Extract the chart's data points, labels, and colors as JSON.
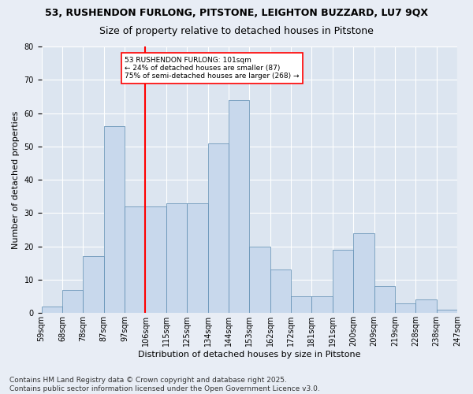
{
  "title1": "53, RUSHENDON FURLONG, PITSTONE, LEIGHTON BUZZARD, LU7 9QX",
  "title2": "Size of property relative to detached houses in Pitstone",
  "xlabel": "Distribution of detached houses by size in Pitstone",
  "ylabel": "Number of detached properties",
  "bar_values": [
    2,
    7,
    17,
    56,
    32,
    32,
    33,
    33,
    51,
    64,
    20,
    13,
    5,
    5,
    19,
    24,
    8,
    3,
    4,
    1
  ],
  "categories": [
    "59sqm",
    "68sqm",
    "78sqm",
    "87sqm",
    "97sqm",
    "106sqm",
    "115sqm",
    "125sqm",
    "134sqm",
    "144sqm",
    "153sqm",
    "162sqm",
    "172sqm",
    "181sqm",
    "191sqm",
    "200sqm",
    "209sqm",
    "219sqm",
    "228sqm",
    "238sqm",
    "247sqm"
  ],
  "bar_color": "#c8d8ec",
  "bar_edge_color": "#5a8ab0",
  "vline_color": "red",
  "vline_x_index": 4.5,
  "annotation_text": "53 RUSHENDON FURLONG: 101sqm\n← 24% of detached houses are smaller (87)\n75% of semi-detached houses are larger (268) →",
  "annotation_box_color": "white",
  "annotation_box_edge": "red",
  "ylim": [
    0,
    80
  ],
  "yticks": [
    0,
    10,
    20,
    30,
    40,
    50,
    60,
    70,
    80
  ],
  "footer": "Contains HM Land Registry data © Crown copyright and database right 2025.\nContains public sector information licensed under the Open Government Licence v3.0.",
  "bg_color": "#e8edf5",
  "plot_bg_color": "#dce5f0",
  "grid_color": "#ffffff",
  "title_fontsize": 9,
  "subtitle_fontsize": 9,
  "axis_label_fontsize": 8,
  "tick_fontsize": 7,
  "footer_fontsize": 6.5
}
